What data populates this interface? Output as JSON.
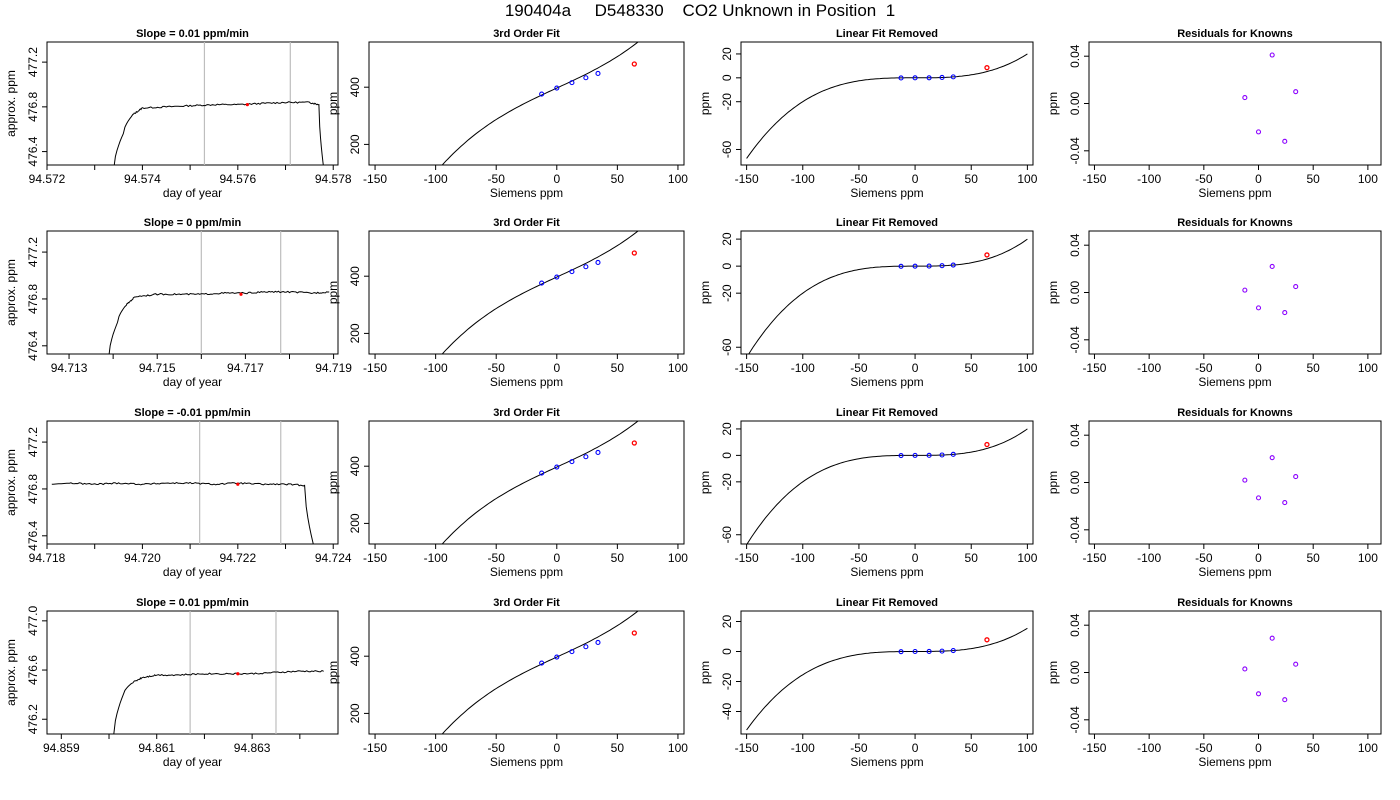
{
  "page": {
    "title": "190404a     D548330    CO2 Unknown in Position  1"
  },
  "styles": {
    "trace": "#000000",
    "vline": "#bebebe",
    "known": "#0000ff",
    "unknown": "#ff0000",
    "residual": "#8b00ff"
  },
  "chart_data": [
    {
      "type": "line",
      "title": "Slope =  0.01  ppm/min",
      "xlabel": "day of year",
      "ylabel": "approx. ppm",
      "xlim": [
        94.572,
        94.5781
      ],
      "ylim": [
        476.28,
        477.38
      ],
      "xticks": [
        "94.572",
        "94.574",
        "94.576",
        "94.578"
      ],
      "yticks": [
        "476.4",
        "476.8",
        "477.2"
      ],
      "markers": [
        94.5753,
        94.5771
      ],
      "unknown_point": {
        "x": 94.5762,
        "y": 476.82
      },
      "trace": [
        [
          94.5734,
          476.25
        ],
        [
          94.5736,
          476.56
        ],
        [
          94.5738,
          476.73
        ],
        [
          94.574,
          476.79
        ],
        [
          94.5745,
          476.8
        ],
        [
          94.575,
          476.81
        ],
        [
          94.5755,
          476.82
        ],
        [
          94.576,
          476.82
        ],
        [
          94.5765,
          476.83
        ],
        [
          94.577,
          476.84
        ],
        [
          94.5775,
          476.84
        ],
        [
          94.5777,
          476.82
        ],
        [
          94.5778,
          476.25
        ]
      ]
    },
    {
      "type": "scatter",
      "title": "3rd Order Fit",
      "xlabel": "Siemens ppm",
      "ylabel": "ppm",
      "xlim": [
        -155,
        105
      ],
      "ylim": [
        128,
        558
      ],
      "xticks": [
        "-150",
        "-100",
        "-50",
        "0",
        "50",
        "100"
      ],
      "yticks": [
        "200",
        "400"
      ],
      "curve_x": [
        -150,
        100
      ],
      "curve": [
        0.0001,
        0,
        1.95,
        397
      ],
      "knowns": [
        [
          -12.5,
          376
        ],
        [
          0,
          397
        ],
        [
          12.5,
          416
        ],
        [
          24,
          433
        ],
        [
          34,
          448
        ]
      ],
      "unknowns": [
        [
          64,
          481
        ]
      ]
    },
    {
      "type": "scatter",
      "title": "Linear Fit Removed",
      "xlabel": "Siemens ppm",
      "ylabel": "ppm",
      "xlim": [
        -155,
        105
      ],
      "ylim": [
        -73,
        30
      ],
      "xticks": [
        "-150",
        "-100",
        "-50",
        "0",
        "50",
        "100"
      ],
      "yticks": [
        "20",
        "0",
        "-20",
        "-60"
      ],
      "curve_x": [
        -150,
        100
      ],
      "curve": [
        2e-05,
        0,
        0,
        0
      ],
      "knowns": [
        [
          -12.5,
          -0.1
        ],
        [
          0,
          0
        ],
        [
          12.5,
          0.04
        ],
        [
          24,
          0.3
        ],
        [
          34,
          0.8
        ]
      ],
      "unknowns": [
        [
          64,
          8.5
        ]
      ]
    },
    {
      "type": "scatter",
      "title": "Residuals for Knowns",
      "xlabel": "Siemens ppm",
      "ylabel": "ppm",
      "xlim": [
        -155,
        112
      ],
      "ylim": [
        -0.052,
        0.052
      ],
      "xticks": [
        "-150",
        "-100",
        "-50",
        "0",
        "50",
        "100"
      ],
      "yticks": [
        "0.04",
        "0.00",
        "-0.04"
      ],
      "knowns": [
        [
          -12.5,
          0.005
        ],
        [
          0,
          -0.024
        ],
        [
          12.5,
          0.041
        ],
        [
          24,
          -0.032
        ],
        [
          34,
          0.01
        ]
      ]
    },
    {
      "type": "line",
      "title": "Slope =  0  ppm/min",
      "xlabel": "day of year",
      "ylabel": "approx. ppm",
      "xlim": [
        94.7125,
        94.7191
      ],
      "ylim": [
        476.33,
        477.38
      ],
      "xticks": [
        "94.713",
        "94.715",
        "94.717",
        "94.719"
      ],
      "yticks": [
        "476.4",
        "476.8",
        "477.2"
      ],
      "markers": [
        94.716,
        94.7178
      ],
      "unknown_point": {
        "x": 94.7169,
        "y": 476.84
      },
      "trace": [
        [
          94.7139,
          476.3
        ],
        [
          94.7141,
          476.6
        ],
        [
          94.7143,
          476.75
        ],
        [
          94.7145,
          476.82
        ],
        [
          94.715,
          476.84
        ],
        [
          94.7155,
          476.84
        ],
        [
          94.716,
          476.84
        ],
        [
          94.7165,
          476.85
        ],
        [
          94.717,
          476.85
        ],
        [
          94.7175,
          476.86
        ],
        [
          94.718,
          476.86
        ],
        [
          94.7185,
          476.85
        ],
        [
          94.7189,
          476.86
        ]
      ]
    },
    {
      "type": "scatter",
      "title": "3rd Order Fit",
      "xlabel": "Siemens ppm",
      "ylabel": "ppm",
      "xlim": [
        -155,
        105
      ],
      "ylim": [
        128,
        558
      ],
      "xticks": [
        "-150",
        "-100",
        "-50",
        "0",
        "50",
        "100"
      ],
      "yticks": [
        "200",
        "400"
      ],
      "curve_x": [
        -150,
        100
      ],
      "curve": [
        0.0001,
        0,
        1.95,
        397
      ],
      "knowns": [
        [
          -12.5,
          376
        ],
        [
          0,
          397
        ],
        [
          12.5,
          416
        ],
        [
          24,
          433
        ],
        [
          34,
          448
        ]
      ],
      "unknowns": [
        [
          64,
          481
        ]
      ]
    },
    {
      "type": "scatter",
      "title": "Linear Fit Removed",
      "xlabel": "Siemens ppm",
      "ylabel": "ppm",
      "xlim": [
        -155,
        105
      ],
      "ylim": [
        -65,
        26
      ],
      "xticks": [
        "-150",
        "-100",
        "-50",
        "0",
        "50",
        "100"
      ],
      "yticks": [
        "20",
        "0",
        "-20",
        "-60"
      ],
      "curve_x": [
        -150,
        100
      ],
      "curve": [
        2e-05,
        0,
        0,
        0
      ],
      "knowns": [
        [
          -12.5,
          -0.1
        ],
        [
          0,
          0
        ],
        [
          12.5,
          0.04
        ],
        [
          24,
          0.3
        ],
        [
          34,
          0.8
        ]
      ],
      "unknowns": [
        [
          64,
          8.3
        ]
      ]
    },
    {
      "type": "scatter",
      "title": "Residuals for Knowns",
      "xlabel": "Siemens ppm",
      "ylabel": "ppm",
      "xlim": [
        -155,
        112
      ],
      "ylim": [
        -0.052,
        0.052
      ],
      "xticks": [
        "-150",
        "-100",
        "-50",
        "0",
        "50",
        "100"
      ],
      "yticks": [
        "0.04",
        "0.00",
        "-0.04"
      ],
      "knowns": [
        [
          -12.5,
          0.002
        ],
        [
          0,
          -0.013
        ],
        [
          12.5,
          0.022
        ],
        [
          24,
          -0.017
        ],
        [
          34,
          0.005
        ]
      ]
    },
    {
      "type": "line",
      "title": "Slope =  -0.01  ppm/min",
      "xlabel": "day of year",
      "ylabel": "approx. ppm",
      "xlim": [
        94.718,
        94.7241
      ],
      "ylim": [
        476.33,
        477.38
      ],
      "xticks": [
        "94.718",
        "94.720",
        "94.722",
        "94.724"
      ],
      "yticks": [
        "476.4",
        "476.8",
        "477.2"
      ],
      "markers": [
        94.7212,
        94.7229
      ],
      "unknown_point": {
        "x": 94.722,
        "y": 476.84
      },
      "trace": [
        [
          94.7181,
          476.84
        ],
        [
          94.7185,
          476.85
        ],
        [
          94.719,
          476.84
        ],
        [
          94.7195,
          476.85
        ],
        [
          94.72,
          476.84
        ],
        [
          94.7205,
          476.85
        ],
        [
          94.721,
          476.85
        ],
        [
          94.7215,
          476.84
        ],
        [
          94.722,
          476.85
        ],
        [
          94.7225,
          476.84
        ],
        [
          94.723,
          476.84
        ],
        [
          94.7234,
          476.83
        ],
        [
          94.7236,
          476.3
        ]
      ]
    },
    {
      "type": "scatter",
      "title": "3rd Order Fit",
      "xlabel": "Siemens ppm",
      "ylabel": "ppm",
      "xlim": [
        -155,
        105
      ],
      "ylim": [
        128,
        558
      ],
      "xticks": [
        "-150",
        "-100",
        "-50",
        "0",
        "50",
        "100"
      ],
      "yticks": [
        "200",
        "400"
      ],
      "curve_x": [
        -150,
        100
      ],
      "curve": [
        0.0001,
        0,
        1.95,
        397
      ],
      "knowns": [
        [
          -12.5,
          376
        ],
        [
          0,
          397
        ],
        [
          12.5,
          416
        ],
        [
          24,
          433
        ],
        [
          34,
          448
        ]
      ],
      "unknowns": [
        [
          64,
          481
        ]
      ]
    },
    {
      "type": "scatter",
      "title": "Linear Fit Removed",
      "xlabel": "Siemens ppm",
      "ylabel": "ppm",
      "xlim": [
        -155,
        105
      ],
      "ylim": [
        -67,
        26
      ],
      "xticks": [
        "-150",
        "-100",
        "-50",
        "0",
        "50",
        "100"
      ],
      "yticks": [
        "20",
        "0",
        "-20",
        "-60"
      ],
      "curve_x": [
        -150,
        100
      ],
      "curve": [
        2e-05,
        0,
        0,
        0
      ],
      "knowns": [
        [
          -12.5,
          -0.1
        ],
        [
          0,
          0
        ],
        [
          12.5,
          0.04
        ],
        [
          24,
          0.3
        ],
        [
          34,
          0.8
        ]
      ],
      "unknowns": [
        [
          64,
          8.2
        ]
      ]
    },
    {
      "type": "scatter",
      "title": "Residuals for Knowns",
      "xlabel": "Siemens ppm",
      "ylabel": "ppm",
      "xlim": [
        -155,
        112
      ],
      "ylim": [
        -0.052,
        0.052
      ],
      "xticks": [
        "-150",
        "-100",
        "-50",
        "0",
        "50",
        "100"
      ],
      "yticks": [
        "0.04",
        "0.00",
        "-0.04"
      ],
      "knowns": [
        [
          -12.5,
          0.002
        ],
        [
          0,
          -0.013
        ],
        [
          12.5,
          0.021
        ],
        [
          24,
          -0.017
        ],
        [
          34,
          0.005
        ]
      ]
    },
    {
      "type": "line",
      "title": "Slope =  0.01  ppm/min",
      "xlabel": "day of year",
      "ylabel": "approx. ppm",
      "xlim": [
        94.8587,
        94.8648
      ],
      "ylim": [
        476.08,
        477.08
      ],
      "xticks": [
        "94.859",
        "94.861",
        "94.863"
      ],
      "yticks": [
        "476.2",
        "476.6",
        "477.0"
      ],
      "markers": [
        94.8617,
        94.8635
      ],
      "unknown_point": {
        "x": 94.8627,
        "y": 476.57
      },
      "trace": [
        [
          94.8601,
          476.08
        ],
        [
          94.8603,
          476.4
        ],
        [
          94.8605,
          476.5
        ],
        [
          94.8607,
          476.54
        ],
        [
          94.861,
          476.56
        ],
        [
          94.8615,
          476.56
        ],
        [
          94.862,
          476.57
        ],
        [
          94.8625,
          476.57
        ],
        [
          94.863,
          476.57
        ],
        [
          94.8635,
          476.58
        ],
        [
          94.864,
          476.59
        ],
        [
          94.8645,
          476.59
        ]
      ]
    },
    {
      "type": "scatter",
      "title": "3rd Order Fit",
      "xlabel": "Siemens ppm",
      "ylabel": "ppm",
      "xlim": [
        -155,
        105
      ],
      "ylim": [
        128,
        558
      ],
      "xticks": [
        "-150",
        "-100",
        "-50",
        "0",
        "50",
        "100"
      ],
      "yticks": [
        "200",
        "400"
      ],
      "curve_x": [
        -150,
        100
      ],
      "curve": [
        0.0001,
        0,
        1.95,
        397
      ],
      "knowns": [
        [
          -12.5,
          376
        ],
        [
          0,
          397
        ],
        [
          12.5,
          416
        ],
        [
          24,
          433
        ],
        [
          34,
          448
        ]
      ],
      "unknowns": [
        [
          64,
          481
        ]
      ]
    },
    {
      "type": "scatter",
      "title": "Linear Fit Removed",
      "xlabel": "Siemens ppm",
      "ylabel": "ppm",
      "xlim": [
        -155,
        105
      ],
      "ylim": [
        -55,
        27
      ],
      "xticks": [
        "-150",
        "-100",
        "-50",
        "0",
        "50",
        "100"
      ],
      "yticks": [
        "20",
        "0",
        "-20",
        "-40"
      ],
      "curve_x": [
        -150,
        100
      ],
      "curve": [
        1.55e-05,
        0,
        0,
        0
      ],
      "knowns": [
        [
          -12.5,
          -0.1
        ],
        [
          0,
          0
        ],
        [
          12.5,
          0.04
        ],
        [
          24,
          0.25
        ],
        [
          34,
          0.6
        ]
      ],
      "unknowns": [
        [
          64,
          7.8
        ]
      ]
    },
    {
      "type": "scatter",
      "title": "Residuals for Knowns",
      "xlabel": "Siemens ppm",
      "ylabel": "ppm",
      "xlim": [
        -155,
        112
      ],
      "ylim": [
        -0.052,
        0.052
      ],
      "xticks": [
        "-150",
        "-100",
        "-50",
        "0",
        "50",
        "100"
      ],
      "yticks": [
        "0.04",
        "0.00",
        "-0.04"
      ],
      "knowns": [
        [
          -12.5,
          0.003
        ],
        [
          0,
          -0.018
        ],
        [
          12.5,
          0.029
        ],
        [
          24,
          -0.023
        ],
        [
          34,
          0.007
        ]
      ]
    }
  ]
}
